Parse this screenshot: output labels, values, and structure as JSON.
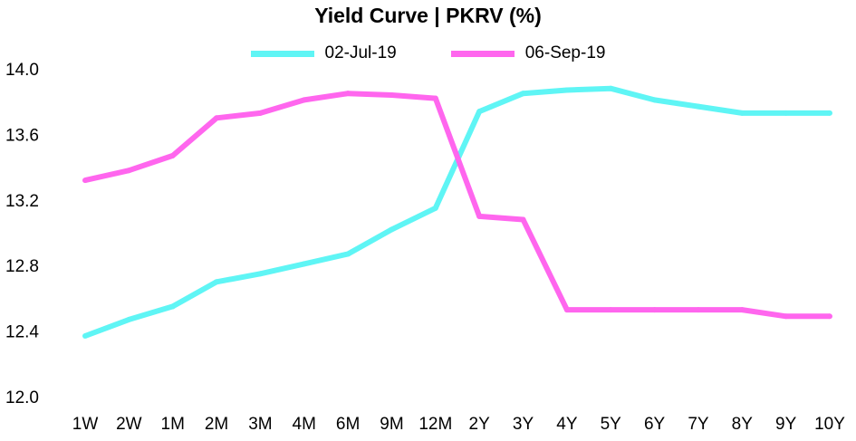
{
  "chart_data": {
    "type": "line",
    "title": "Yield Curve | PKRV (%)",
    "xlabel": "",
    "ylabel": "",
    "categories": [
      "1W",
      "2W",
      "1M",
      "2M",
      "3M",
      "4M",
      "6M",
      "9M",
      "12M",
      "2Y",
      "3Y",
      "4Y",
      "5Y",
      "6Y",
      "7Y",
      "8Y",
      "9Y",
      "10Y"
    ],
    "ylim": [
      12.0,
      14.0
    ],
    "yticks": [
      "12.0",
      "12.4",
      "12.8",
      "13.2",
      "13.6",
      "14.0"
    ],
    "grid": false,
    "legend_position": "top",
    "series": [
      {
        "name": "02-Jul-19",
        "color": "#5ff5f5",
        "values": [
          12.37,
          12.47,
          12.55,
          12.7,
          12.75,
          12.81,
          12.87,
          13.02,
          13.15,
          13.74,
          13.85,
          13.87,
          13.88,
          13.81,
          13.77,
          13.73,
          13.73,
          13.73
        ]
      },
      {
        "name": "06-Sep-19",
        "color": "#ff66ee",
        "values": [
          13.32,
          13.38,
          13.47,
          13.7,
          13.73,
          13.81,
          13.85,
          13.84,
          13.82,
          13.1,
          13.08,
          12.53,
          12.53,
          12.53,
          12.53,
          12.53,
          12.49,
          12.49
        ]
      }
    ]
  }
}
